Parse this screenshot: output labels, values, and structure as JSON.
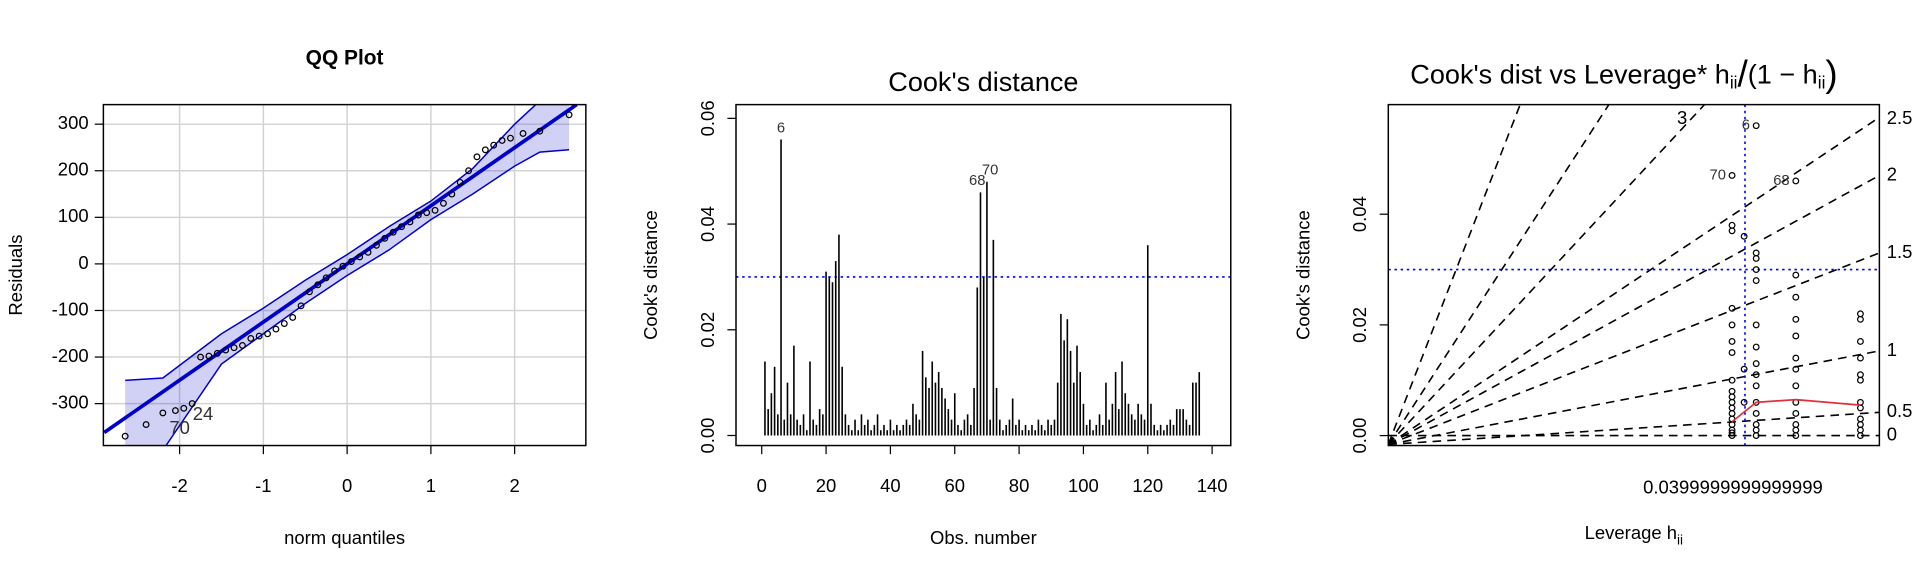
{
  "chart_data": [
    {
      "type": "qq",
      "title": "QQ Plot",
      "xlabel": "norm quantiles",
      "ylabel": "Residuals",
      "xlim": [
        -2.91,
        2.85
      ],
      "ylim": [
        -390,
        342
      ],
      "xticks": [
        -2,
        -1,
        0,
        1,
        2
      ],
      "yticks": [
        -300,
        -200,
        -100,
        0,
        100,
        200,
        300
      ],
      "grid": true,
      "color": "#0000cc",
      "x": [
        -2.65,
        -2.4,
        -2.2,
        -2.05,
        -1.95,
        -1.85,
        -1.75,
        -1.65,
        -1.55,
        -1.45,
        -1.35,
        -1.25,
        -1.15,
        -1.05,
        -0.95,
        -0.85,
        -0.75,
        -0.65,
        -0.55,
        -0.45,
        -0.35,
        -0.25,
        -0.15,
        -0.05,
        0.05,
        0.15,
        0.25,
        0.35,
        0.45,
        0.55,
        0.65,
        0.75,
        0.85,
        0.95,
        1.05,
        1.15,
        1.25,
        1.35,
        1.45,
        1.55,
        1.65,
        1.75,
        1.85,
        1.95,
        2.1,
        2.3,
        2.65
      ],
      "y": [
        -370,
        -345,
        -320,
        -315,
        -310,
        -300,
        -200,
        -198,
        -192,
        -185,
        -180,
        -175,
        -160,
        -155,
        -150,
        -140,
        -128,
        -115,
        -90,
        -60,
        -45,
        -30,
        -15,
        -5,
        5,
        15,
        25,
        40,
        55,
        68,
        80,
        90,
        105,
        110,
        115,
        130,
        150,
        175,
        200,
        230,
        245,
        255,
        265,
        270,
        280,
        285,
        320
      ],
      "ref_line": {
        "x": [
          -2.9,
          2.74
        ],
        "y": [
          -362,
          342
        ]
      },
      "band": {
        "x": [
          -2.65,
          -2.2,
          -1.5,
          -1,
          -0.5,
          0,
          0.5,
          1,
          1.5,
          2,
          2.3,
          2.65
        ],
        "upper": [
          -250,
          -245,
          -150,
          -95,
          -35,
          20,
          80,
          135,
          205,
          300,
          350,
          420
        ],
        "lower": [
          -400,
          -400,
          -215,
          -150,
          -85,
          -25,
          30,
          95,
          150,
          210,
          240,
          245
        ]
      },
      "point_labels": [
        {
          "text": "70",
          "x": -2.0,
          "y": -355
        },
        {
          "text": "24",
          "x": -1.72,
          "y": -325
        }
      ]
    },
    {
      "type": "bar",
      "title": "Cook's distance",
      "xlabel": "Obs. number",
      "ylabel": "Cook's distance",
      "xlim": [
        -8,
        145.8
      ],
      "ylim": [
        -0.0019,
        0.0626
      ],
      "xticks": [
        0,
        20,
        40,
        60,
        80,
        100,
        120,
        140
      ],
      "yticks": [
        {
          "value": 0,
          "label": "0.00"
        },
        {
          "value": 0.02,
          "label": "0.02"
        },
        {
          "value": 0.04,
          "label": "0.04"
        },
        {
          "value": 0.06,
          "label": "0.06"
        }
      ],
      "hline": 0.03,
      "color": "#000000",
      "x": [
        1,
        2,
        3,
        4,
        5,
        6,
        7,
        8,
        9,
        10,
        11,
        12,
        13,
        14,
        15,
        16,
        17,
        18,
        19,
        20,
        21,
        22,
        23,
        24,
        25,
        26,
        27,
        28,
        29,
        30,
        31,
        32,
        33,
        34,
        35,
        36,
        37,
        38,
        39,
        40,
        41,
        42,
        43,
        44,
        45,
        46,
        47,
        48,
        49,
        50,
        51,
        52,
        53,
        54,
        55,
        56,
        57,
        58,
        59,
        60,
        61,
        62,
        63,
        64,
        65,
        66,
        67,
        68,
        69,
        70,
        71,
        72,
        73,
        74,
        75,
        76,
        77,
        78,
        79,
        80,
        81,
        82,
        83,
        84,
        85,
        86,
        87,
        88,
        89,
        90,
        91,
        92,
        93,
        94,
        95,
        96,
        97,
        98,
        99,
        100,
        101,
        102,
        103,
        104,
        105,
        106,
        107,
        108,
        109,
        110,
        111,
        112,
        113,
        114,
        115,
        116,
        117,
        118,
        119,
        120,
        121,
        122,
        123,
        124,
        125,
        126,
        127,
        128,
        129,
        130,
        131,
        132,
        133,
        134,
        135,
        136
      ],
      "values": [
        0.014,
        0.005,
        0.008,
        0.013,
        0.004,
        0.056,
        0.003,
        0.01,
        0.004,
        0.017,
        0.003,
        0.002,
        0.004,
        0.001,
        0.014,
        0.003,
        0.002,
        0.005,
        0.004,
        0.031,
        0.03,
        0.029,
        0.033,
        0.038,
        0.013,
        0.004,
        0.002,
        0.001,
        0.003,
        0.001,
        0.004,
        0.002,
        0.003,
        0.001,
        0.002,
        0.004,
        0.001,
        0.002,
        0.001,
        0.003,
        0.001,
        0.002,
        0.001,
        0.002,
        0.003,
        0.002,
        0.006,
        0.004,
        0.003,
        0.016,
        0.011,
        0.009,
        0.014,
        0.01,
        0.012,
        0.009,
        0.007,
        0.005,
        0.003,
        0.008,
        0.002,
        0.001,
        0.003,
        0.004,
        0.002,
        0.009,
        0.028,
        0.046,
        0.03,
        0.048,
        0.003,
        0.037,
        0.009,
        0.003,
        0.001,
        0.002,
        0.003,
        0.007,
        0.002,
        0.003,
        0.001,
        0.002,
        0.001,
        0.002,
        0.001,
        0.003,
        0.002,
        0.001,
        0.003,
        0.002,
        0.003,
        0.01,
        0.023,
        0.018,
        0.022,
        0.016,
        0.01,
        0.017,
        0.012,
        0.006,
        0.002,
        0.003,
        0.001,
        0.002,
        0.004,
        0.002,
        0.01,
        0.003,
        0.006,
        0.012,
        0.005,
        0.014,
        0.008,
        0.006,
        0.004,
        0.003,
        0.006,
        0.004,
        0.003,
        0.036,
        0.006,
        0.002,
        0.001,
        0.002,
        0.001,
        0.002,
        0.003,
        0.002,
        0.005,
        0.005,
        0.005,
        0.003,
        0.002,
        0.01,
        0.01,
        0.012
      ],
      "point_labels": [
        {
          "text": "6",
          "x": 6,
          "y": 0.056
        },
        {
          "text": "68",
          "x": 67,
          "y": 0.046
        },
        {
          "text": "70",
          "x": 71,
          "y": 0.048
        }
      ]
    },
    {
      "type": "scatter",
      "title_parts": [
        "Cook's dist vs Leverage* h",
        "ii",
        "/",
        "(1 − h",
        "ii",
        ")"
      ],
      "xlabel_parts": [
        "Leverage  h",
        "ii"
      ],
      "ylabel": "Cook's distance",
      "xlim": [
        0,
        0.057
      ],
      "ylim": [
        -0.0018,
        0.0598
      ],
      "xticks": [
        {
          "value": 0.04,
          "label": "0.0399999999999999"
        }
      ],
      "yticks": [
        {
          "value": 0,
          "label": "0.00"
        },
        {
          "value": 0.02,
          "label": "0.02"
        },
        {
          "value": 0.04,
          "label": "0.04"
        }
      ],
      "hline": 0.03,
      "vline": 0.0414,
      "color": "#000000",
      "smooth_color": "#e0303a",
      "x": [
        0.0399,
        0.0399,
        0.0399,
        0.0399,
        0.0399,
        0.0399,
        0.0399,
        0.0399,
        0.0399,
        0.0399,
        0.0399,
        0.0399,
        0.0399,
        0.0399,
        0.0399,
        0.0399,
        0.0399,
        0.0399,
        0.0413,
        0.0413,
        0.0413,
        0.0427,
        0.0427,
        0.0427,
        0.0427,
        0.0427,
        0.0427,
        0.0427,
        0.0427,
        0.0427,
        0.0427,
        0.0427,
        0.0427,
        0.0427,
        0.0427,
        0.0427,
        0.0473,
        0.0473,
        0.0473,
        0.0473,
        0.0473,
        0.0473,
        0.0473,
        0.0473,
        0.0473,
        0.0473,
        0.0473,
        0.0473,
        0.0473,
        0.0548,
        0.0548,
        0.0548,
        0.0548,
        0.0548,
        0.0548,
        0.0548,
        0.0548,
        0.0548,
        0.0548,
        0.0548,
        0.0548
      ],
      "y": [
        0.047,
        0.038,
        0.037,
        0.023,
        0.02,
        0.017,
        0.015,
        0.01,
        0.008,
        0.007,
        0.006,
        0.005,
        0.004,
        0.003,
        0.002,
        0.001,
        0.0005,
        0,
        0.036,
        0.012,
        0.006,
        0.056,
        0.033,
        0.032,
        0.03,
        0.028,
        0.02,
        0.016,
        0.013,
        0.011,
        0.009,
        0.006,
        0.004,
        0.002,
        0.001,
        0,
        0.046,
        0.029,
        0.025,
        0.021,
        0.018,
        0.014,
        0.012,
        0.009,
        0.006,
        0.004,
        0.002,
        0.001,
        0,
        0.022,
        0.021,
        0.017,
        0.014,
        0.011,
        0.01,
        0.006,
        0.005,
        0.003,
        0.002,
        0.001,
        0
      ],
      "smooth": {
        "x": [
          0.0399,
          0.0427,
          0.0473,
          0.0548
        ],
        "y": [
          0.0025,
          0.006,
          0.0065,
          0.0055
        ]
      },
      "contours": [
        {
          "x": [
            0,
            0.0153
          ],
          "y": [
            -0.0016,
            0.0598
          ]
        },
        {
          "x": [
            0,
            0.0256
          ],
          "y": [
            -0.0016,
            0.0598
          ]
        },
        {
          "label": "3",
          "x": [
            0,
            0.0367
          ],
          "y": [
            -0.0016,
            0.0598
          ]
        },
        {
          "label": "2.5",
          "x": [
            0,
            0.057
          ],
          "y": [
            -0.0016,
            0.0575
          ]
        },
        {
          "label": "2",
          "x": [
            0,
            0.057
          ],
          "y": [
            -0.0016,
            0.047
          ]
        },
        {
          "label": "1.5",
          "x": [
            0,
            0.057
          ],
          "y": [
            -0.0016,
            0.033
          ]
        },
        {
          "label": "1",
          "x": [
            0,
            0.057
          ],
          "y": [
            -0.0016,
            0.0153
          ]
        },
        {
          "label": "0.5",
          "x": [
            0,
            0.057
          ],
          "y": [
            -0.0016,
            0.0042
          ]
        },
        {
          "label": "0",
          "x": [
            0,
            0.057
          ],
          "y": [
            0,
            0
          ]
        }
      ],
      "point_labels": [
        {
          "text": "70",
          "x": 0.0399,
          "y": 0.047
        },
        {
          "text": "6",
          "x": 0.0427,
          "y": 0.056
        },
        {
          "text": "68",
          "x": 0.0473,
          "y": 0.046
        }
      ]
    }
  ]
}
